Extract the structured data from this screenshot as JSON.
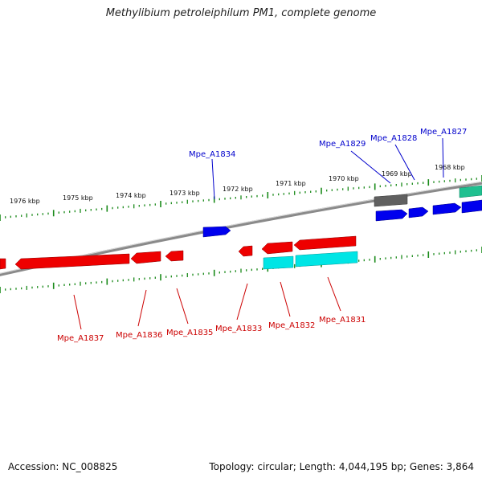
{
  "title": "Methylibium petroleiphilum PM1, complete genome",
  "footer": {
    "accession": "Accession: NC_008825",
    "summary": "Topology: circular; Length: 4,044,195 bp; Genes: 3,864"
  },
  "colors": {
    "backbone": "#8a8a8a",
    "ticks": "#1a8a1a",
    "forward_gene": "#0000ee",
    "reverse_gene": "#ee0000",
    "cds_cyan": "#00e5e5",
    "cds_gray": "#606060",
    "cds_teal": "#20c090",
    "forward_label": "#0000cc",
    "reverse_label": "#cc0000"
  },
  "kbp_labels": [
    "1976 kbp",
    "1975 kbp",
    "1974 kbp",
    "1973 kbp",
    "1972 kbp",
    "1971 kbp",
    "1970 kbp",
    "1969 kbp",
    "1968 kbp"
  ],
  "forward_genes": [
    "Mpe_A1834",
    "Mpe_A1829",
    "Mpe_A1828",
    "Mpe_A1827"
  ],
  "reverse_genes": [
    "Mpe_A1837",
    "Mpe_A1836",
    "Mpe_A1835",
    "Mpe_A1833",
    "Mpe_A1832",
    "Mpe_A1831"
  ]
}
